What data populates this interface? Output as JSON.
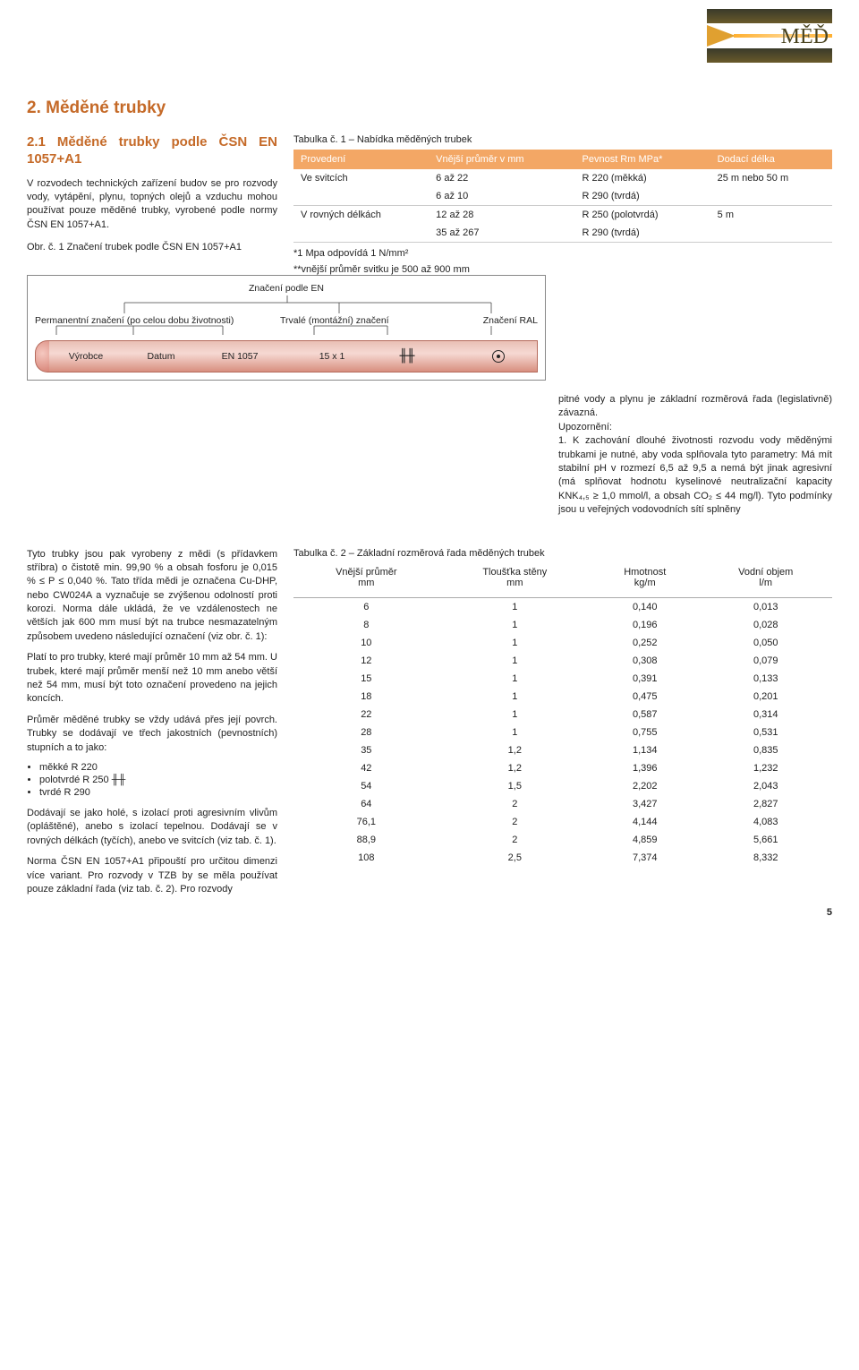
{
  "badge": {
    "label": "MĚĎ"
  },
  "title": "2. Měděné trubky",
  "section21": {
    "heading": "2.1 Měděné trubky podle ČSN EN 1057+A1",
    "para1": "V rozvodech technických zařízení budov se pro rozvody vody, vytápění, plynu, topných olejů a vzduchu mohou používat pouze měděné trubky, vyrobené podle normy ČSN EN 1057+A1.",
    "fig_caption": "Obr. č. 1 Značení trubek podle ČSN EN 1057+A1",
    "fig": {
      "top": "Značení podle EN",
      "left": "Permanentní značení (po celou dobu životnosti)",
      "mid": "Trvalé (montážní) značení",
      "right": "Značení RAL",
      "tube": [
        "Výrobce",
        "Datum",
        "EN 1057",
        "15 x 1",
        "╫╫"
      ]
    }
  },
  "table1": {
    "caption": "Tabulka č. 1 – Nabídka měděných trubek",
    "headers": [
      "Provedení",
      "Vnější průměr v mm",
      "Pevnost Rm MPa*",
      "Dodací délka"
    ],
    "rows": [
      [
        "Ve svitcích",
        "6 až 22",
        "R 220 (měkká)",
        "25 m nebo 50 m"
      ],
      [
        "",
        "6 až 10",
        "R 290 (tvrdá)",
        ""
      ],
      [
        "V rovných délkách",
        "12 až 28",
        "R 250 (polotvrdá)",
        "5 m"
      ],
      [
        "",
        "35 až 267",
        "R 290 (tvrdá)",
        ""
      ]
    ],
    "note1": "*1 Mpa odpovídá 1 N/mm²",
    "note2": "**vnější průměr svitku je 500 až 900 mm"
  },
  "right_para": "pitné vody a plynu je základní rozměrová řada (legislativně) závazná.\nUpozornění:\n1. K zachování dlouhé životnosti rozvodu vody měděnými trubkami je nutné, aby voda splňovala tyto parametry: Má mít stabilní pH v rozmezí 6,5 až 9,5 a nemá být jinak agresivní (má splňovat hodnotu kyselinové neutralizační kapacity KNK₄,₅ ≥ 1,0 mmol/l, a obsah CO₂ ≤ 44 mg/l). Tyto podmínky jsou u veřejných vodovodních sítí splněny",
  "sec2_left": {
    "p1": "Tyto trubky jsou pak vyrobeny z mědi (s přídavkem stříbra) o čistotě min. 99,90 % a obsah fosforu je 0,015 % ≤ P ≤ 0,040 %. Tato třída mědi je označena Cu-DHP, nebo CW024A a vyznačuje se zvýšenou odolností proti korozi. Norma dále ukládá, že ve vzdálenostech ne větších jak 600 mm musí být na trubce nesmazatelným způsobem uvedeno následující označení (viz obr. č. 1):",
    "p2": "Platí to pro trubky, které mají průměr 10 mm až 54 mm. U trubek, které mají průměr menší než 10 mm anebo větší než 54 mm, musí být toto označení provedeno na jejich koncích.",
    "p3": "Průměr měděné trubky se vždy udává přes její povrch. Trubky se dodávají ve třech jakostních (pevnostních) stupních a to jako:",
    "bullets": [
      "měkké R 220",
      "polotvrdé R 250 ╫╫",
      "tvrdé R 290"
    ],
    "p4": "Dodávají se jako holé, s izolací proti agresivním vlivům (opláštěné), anebo s izolací tepelnou. Dodávají se v rovných délkách (tyčích), anebo ve svitcích (viz tab. č. 1).",
    "p5": "Norma ČSN EN 1057+A1 připouští pro určitou dimenzi více variant. Pro rozvody v TZB by se měla používat pouze základní řada (viz tab. č. 2). Pro rozvody"
  },
  "table2": {
    "caption": "Tabulka č. 2 – Základní rozměrová řada měděných trubek",
    "headers": [
      {
        "l1": "Vnější průměr",
        "l2": "mm"
      },
      {
        "l1": "Tloušťka stěny",
        "l2": "mm"
      },
      {
        "l1": "Hmotnost",
        "l2": "kg/m"
      },
      {
        "l1": "Vodní objem",
        "l2": "l/m"
      }
    ],
    "rows": [
      [
        "6",
        "1",
        "0,140",
        "0,013"
      ],
      [
        "8",
        "1",
        "0,196",
        "0,028"
      ],
      [
        "10",
        "1",
        "0,252",
        "0,050"
      ],
      [
        "12",
        "1",
        "0,308",
        "0,079"
      ],
      [
        "15",
        "1",
        "0,391",
        "0,133"
      ],
      [
        "18",
        "1",
        "0,475",
        "0,201"
      ],
      [
        "22",
        "1",
        "0,587",
        "0,314"
      ],
      [
        "28",
        "1",
        "0,755",
        "0,531"
      ],
      [
        "35",
        "1,2",
        "1,134",
        "0,835"
      ],
      [
        "42",
        "1,2",
        "1,396",
        "1,232"
      ],
      [
        "54",
        "1,5",
        "2,202",
        "2,043"
      ],
      [
        "64",
        "2",
        "3,427",
        "2,827"
      ],
      [
        "76,1",
        "2",
        "4,144",
        "4,083"
      ],
      [
        "88,9",
        "2",
        "4,859",
        "5,661"
      ],
      [
        "108",
        "2,5",
        "7,374",
        "8,332"
      ]
    ]
  },
  "pagenum": "5"
}
